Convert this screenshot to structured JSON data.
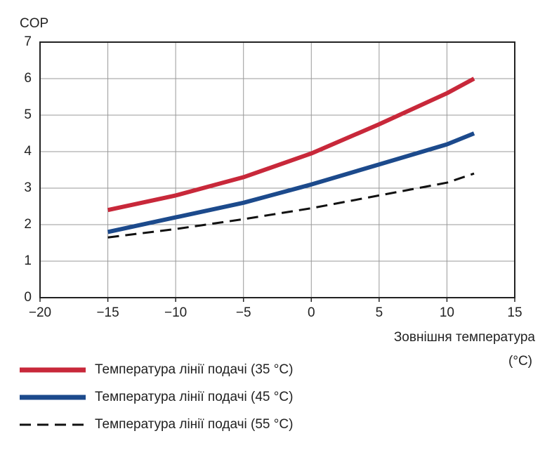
{
  "chart_data": {
    "type": "line",
    "y_label": "COP",
    "x_label": "Зовнішня температура",
    "x_unit": "(°C)",
    "x": [
      -15,
      -10,
      -5,
      0,
      5,
      10,
      12
    ],
    "series": [
      {
        "name": "Температура лінії подачі (35 °C)",
        "color": "#c8283a",
        "line_style": "solid",
        "values": [
          2.4,
          2.8,
          3.3,
          3.95,
          4.75,
          5.6,
          6.0
        ]
      },
      {
        "name": "Температура лінії подачі (45 °C)",
        "color": "#1c4a8c",
        "line_style": "solid",
        "values": [
          1.8,
          2.2,
          2.6,
          3.1,
          3.65,
          4.2,
          4.5
        ]
      },
      {
        "name": "Температура лінії подачі (55 °C)",
        "color": "#111111",
        "line_style": "dashed",
        "values": [
          1.65,
          1.88,
          2.15,
          2.45,
          2.8,
          3.15,
          3.4
        ]
      }
    ],
    "xlim": [
      -20,
      15
    ],
    "xticks": [
      {
        "value": -20,
        "label": "−20"
      },
      {
        "value": -15,
        "label": "−15"
      },
      {
        "value": -10,
        "label": "−10"
      },
      {
        "value": -5,
        "label": "−5"
      },
      0,
      5,
      10,
      15
    ],
    "ylim": [
      0,
      7
    ],
    "yticks": [
      0,
      1,
      2,
      3,
      4,
      5,
      6,
      7
    ],
    "grid": true
  }
}
